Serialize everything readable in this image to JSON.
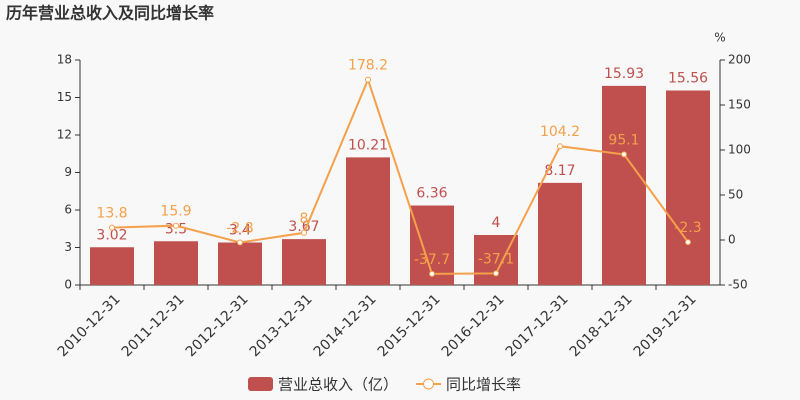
{
  "chart_data": {
    "type": "bar",
    "title": "历年营业总收入及同比增长率",
    "categories": [
      "2010-12-31",
      "2011-12-31",
      "2012-12-31",
      "2013-12-31",
      "2014-12-31",
      "2015-12-31",
      "2016-12-31",
      "2017-12-31",
      "2018-12-31",
      "2019-12-31"
    ],
    "series": [
      {
        "name": "营业总收入（亿）",
        "type": "bar",
        "color": "#c0504d",
        "values": [
          3.02,
          3.5,
          3.4,
          3.67,
          10.21,
          6.36,
          4,
          8.17,
          15.93,
          15.56
        ]
      },
      {
        "name": "同比增长率",
        "type": "line",
        "axis": "y2",
        "color": "#f5a04b",
        "values": [
          13.8,
          15.9,
          -2.8,
          8,
          178.2,
          -37.7,
          -37.1,
          104.2,
          95.1,
          -2.3
        ]
      }
    ],
    "ylim": [
      0,
      18
    ],
    "yticks": [
      0,
      3,
      6,
      9,
      12,
      15,
      18
    ],
    "y2lim": [
      -50,
      200
    ],
    "y2ticks": [
      -50,
      0,
      50,
      100,
      150,
      200
    ],
    "y2label": "%",
    "grid": false
  }
}
